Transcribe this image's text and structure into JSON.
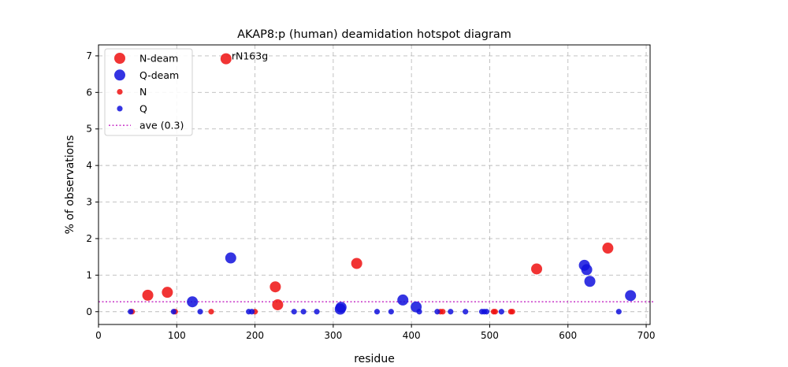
{
  "chart_data": {
    "type": "scatter",
    "title": "AKAP8:p (human) deamidation hotspot diagram",
    "xlabel": "residue",
    "ylabel": "% of observations",
    "xlim": [
      0,
      705
    ],
    "ylim": [
      -0.35,
      7.3
    ],
    "x_ticks": [
      0,
      100,
      200,
      300,
      400,
      500,
      600,
      700
    ],
    "y_ticks": [
      0,
      1,
      2,
      3,
      4,
      5,
      6,
      7
    ],
    "grid": true,
    "legend_position": "top-left",
    "colors": {
      "N": "#ee1111",
      "Q": "#1111dd",
      "ave": "#cc44cc"
    },
    "average": {
      "label": "ave (0.3)",
      "value": 0.27
    },
    "legend": [
      "N-deam",
      "Q-deam",
      "N",
      "Q",
      "ave (0.3)"
    ],
    "series": [
      {
        "name": "N-deam",
        "marker": "large",
        "points": [
          [
            163,
            6.92
          ],
          [
            63,
            0.45
          ],
          [
            88,
            0.53
          ],
          [
            226,
            0.68
          ],
          [
            229,
            0.19
          ],
          [
            330,
            1.32
          ],
          [
            560,
            1.17
          ],
          [
            651,
            1.74
          ]
        ]
      },
      {
        "name": "Q-deam",
        "marker": "large",
        "points": [
          [
            169,
            1.47
          ],
          [
            120,
            0.27
          ],
          [
            309,
            0.07
          ],
          [
            310,
            0.12
          ],
          [
            389,
            0.32
          ],
          [
            406,
            0.13
          ],
          [
            621,
            1.27
          ],
          [
            624,
            1.15
          ],
          [
            628,
            0.83
          ],
          [
            680,
            0.44
          ]
        ]
      },
      {
        "name": "N",
        "marker": "small",
        "points": [
          [
            43,
            0
          ],
          [
            98,
            0
          ],
          [
            144,
            0
          ],
          [
            200,
            0
          ],
          [
            437,
            0
          ],
          [
            440,
            0
          ],
          [
            505,
            0
          ],
          [
            507,
            0
          ],
          [
            527,
            0
          ],
          [
            529,
            0
          ]
        ]
      },
      {
        "name": "Q",
        "marker": "small",
        "points": [
          [
            41,
            0
          ],
          [
            96,
            0
          ],
          [
            130,
            0
          ],
          [
            192,
            0
          ],
          [
            196,
            0
          ],
          [
            250,
            0
          ],
          [
            262,
            0
          ],
          [
            279,
            0
          ],
          [
            356,
            0
          ],
          [
            374,
            0
          ],
          [
            410,
            0
          ],
          [
            433,
            0
          ],
          [
            450,
            0
          ],
          [
            469,
            0
          ],
          [
            490,
            0
          ],
          [
            493,
            0
          ],
          [
            496,
            0
          ],
          [
            515,
            0
          ],
          [
            665,
            0
          ]
        ]
      }
    ],
    "annotations": [
      {
        "text": "rN163g",
        "x": 163,
        "y": 6.92
      }
    ]
  }
}
